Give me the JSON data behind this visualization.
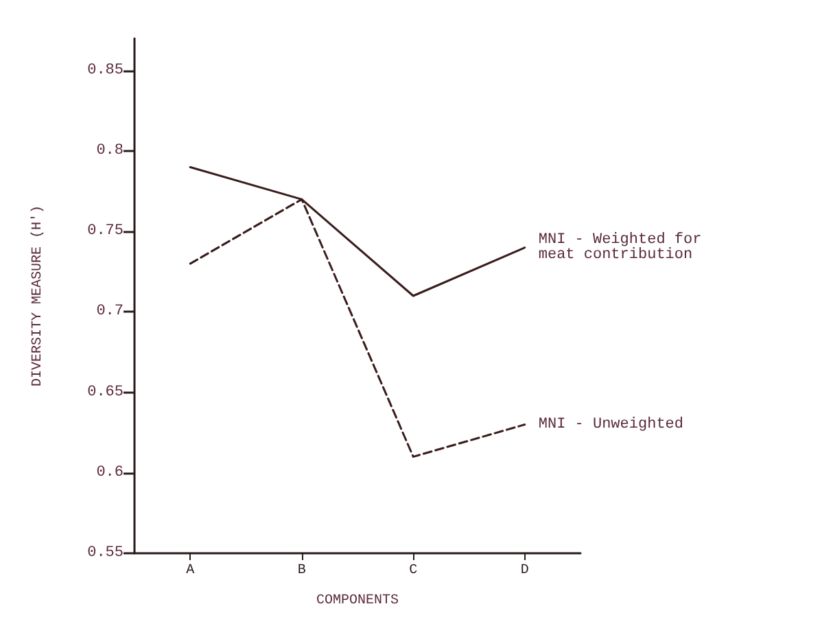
{
  "chart_data": {
    "type": "line",
    "xlabel": "COMPONENTS",
    "ylabel": "DIVERSITY MEASURE (H')",
    "categories": [
      "A",
      "B",
      "C",
      "D"
    ],
    "series": [
      {
        "name": "MNI - Weighted for meat contribution",
        "color": "#3a1c1c",
        "line_style": "solid",
        "values": [
          0.79,
          0.77,
          0.71,
          0.74
        ]
      },
      {
        "name": "MNI - Unweighted",
        "color": "#3a1c1c",
        "line_style": "dashed",
        "values": [
          0.73,
          0.77,
          0.61,
          0.63
        ]
      }
    ],
    "ylim": [
      0.55,
      0.87
    ],
    "yticks": [
      0.55,
      0.6,
      0.65,
      0.7,
      0.75,
      0.8,
      0.85
    ],
    "grid": false,
    "legend": false,
    "marker": "none"
  }
}
